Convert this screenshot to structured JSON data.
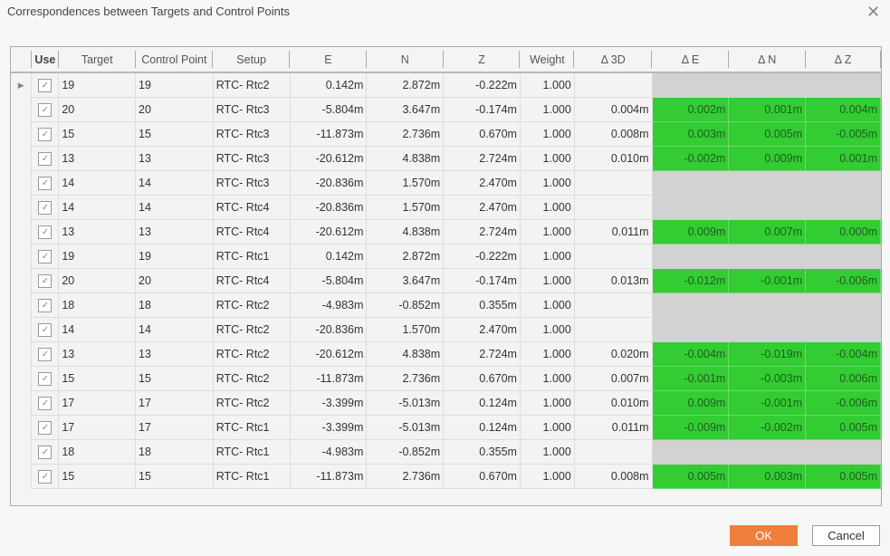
{
  "dialog": {
    "title": "Correspondences between Targets and Control Points",
    "ok": "OK",
    "cancel": "Cancel"
  },
  "colors": {
    "ok_button": "#f07f3c",
    "in_tolerance": "#33cc33",
    "no_value": "#d2d2d2"
  },
  "columns": [
    "Use",
    "Target",
    "Control Point",
    "Setup",
    "E",
    "N",
    "Z",
    "Weight",
    "Δ 3D",
    "Δ E",
    "Δ N",
    "Δ Z"
  ],
  "rows": [
    [
      "19",
      "19",
      "RTC- Rtc2",
      "0.142m",
      "2.872m",
      "-0.222m",
      "1.000",
      "",
      "",
      "",
      ""
    ],
    [
      "20",
      "20",
      "RTC- Rtc3",
      "-5.804m",
      "3.647m",
      "-0.174m",
      "1.000",
      "0.004m",
      "0.002m",
      "0.001m",
      "0.004m"
    ],
    [
      "15",
      "15",
      "RTC- Rtc3",
      "-11.873m",
      "2.736m",
      "0.670m",
      "1.000",
      "0.008m",
      "0.003m",
      "0.005m",
      "-0.005m"
    ],
    [
      "13",
      "13",
      "RTC- Rtc3",
      "-20.612m",
      "4.838m",
      "2.724m",
      "1.000",
      "0.010m",
      "-0.002m",
      "0.009m",
      "0.001m"
    ],
    [
      "14",
      "14",
      "RTC- Rtc3",
      "-20.836m",
      "1.570m",
      "2.470m",
      "1.000",
      "",
      "",
      "",
      ""
    ],
    [
      "14",
      "14",
      "RTC- Rtc4",
      "-20.836m",
      "1.570m",
      "2.470m",
      "1.000",
      "",
      "",
      "",
      ""
    ],
    [
      "13",
      "13",
      "RTC- Rtc4",
      "-20.612m",
      "4.838m",
      "2.724m",
      "1.000",
      "0.011m",
      "0.009m",
      "0.007m",
      "0.000m"
    ],
    [
      "19",
      "19",
      "RTC- Rtc1",
      "0.142m",
      "2.872m",
      "-0.222m",
      "1.000",
      "",
      "",
      "",
      ""
    ],
    [
      "20",
      "20",
      "RTC- Rtc4",
      "-5.804m",
      "3.647m",
      "-0.174m",
      "1.000",
      "0.013m",
      "-0.012m",
      "-0.001m",
      "-0.006m"
    ],
    [
      "18",
      "18",
      "RTC- Rtc2",
      "-4.983m",
      "-0.852m",
      "0.355m",
      "1.000",
      "",
      "",
      "",
      ""
    ],
    [
      "14",
      "14",
      "RTC- Rtc2",
      "-20.836m",
      "1.570m",
      "2.470m",
      "1.000",
      "",
      "",
      "",
      ""
    ],
    [
      "13",
      "13",
      "RTC- Rtc2",
      "-20.612m",
      "4.838m",
      "2.724m",
      "1.000",
      "0.020m",
      "-0.004m",
      "-0.019m",
      "-0.004m"
    ],
    [
      "15",
      "15",
      "RTC- Rtc2",
      "-11.873m",
      "2.736m",
      "0.670m",
      "1.000",
      "0.007m",
      "-0.001m",
      "-0.003m",
      "0.006m"
    ],
    [
      "17",
      "17",
      "RTC- Rtc2",
      "-3.399m",
      "-5.013m",
      "0.124m",
      "1.000",
      "0.010m",
      "0.009m",
      "-0.001m",
      "-0.006m"
    ],
    [
      "17",
      "17",
      "RTC- Rtc1",
      "-3.399m",
      "-5.013m",
      "0.124m",
      "1.000",
      "0.011m",
      "-0.009m",
      "-0.002m",
      "0.005m"
    ],
    [
      "18",
      "18",
      "RTC- Rtc1",
      "-4.983m",
      "-0.852m",
      "0.355m",
      "1.000",
      "",
      "",
      "",
      ""
    ],
    [
      "15",
      "15",
      "RTC- Rtc1",
      "-11.873m",
      "2.736m",
      "0.670m",
      "1.000",
      "0.008m",
      "0.005m",
      "0.003m",
      "0.005m"
    ]
  ],
  "use_checked": true,
  "current_row": 0
}
